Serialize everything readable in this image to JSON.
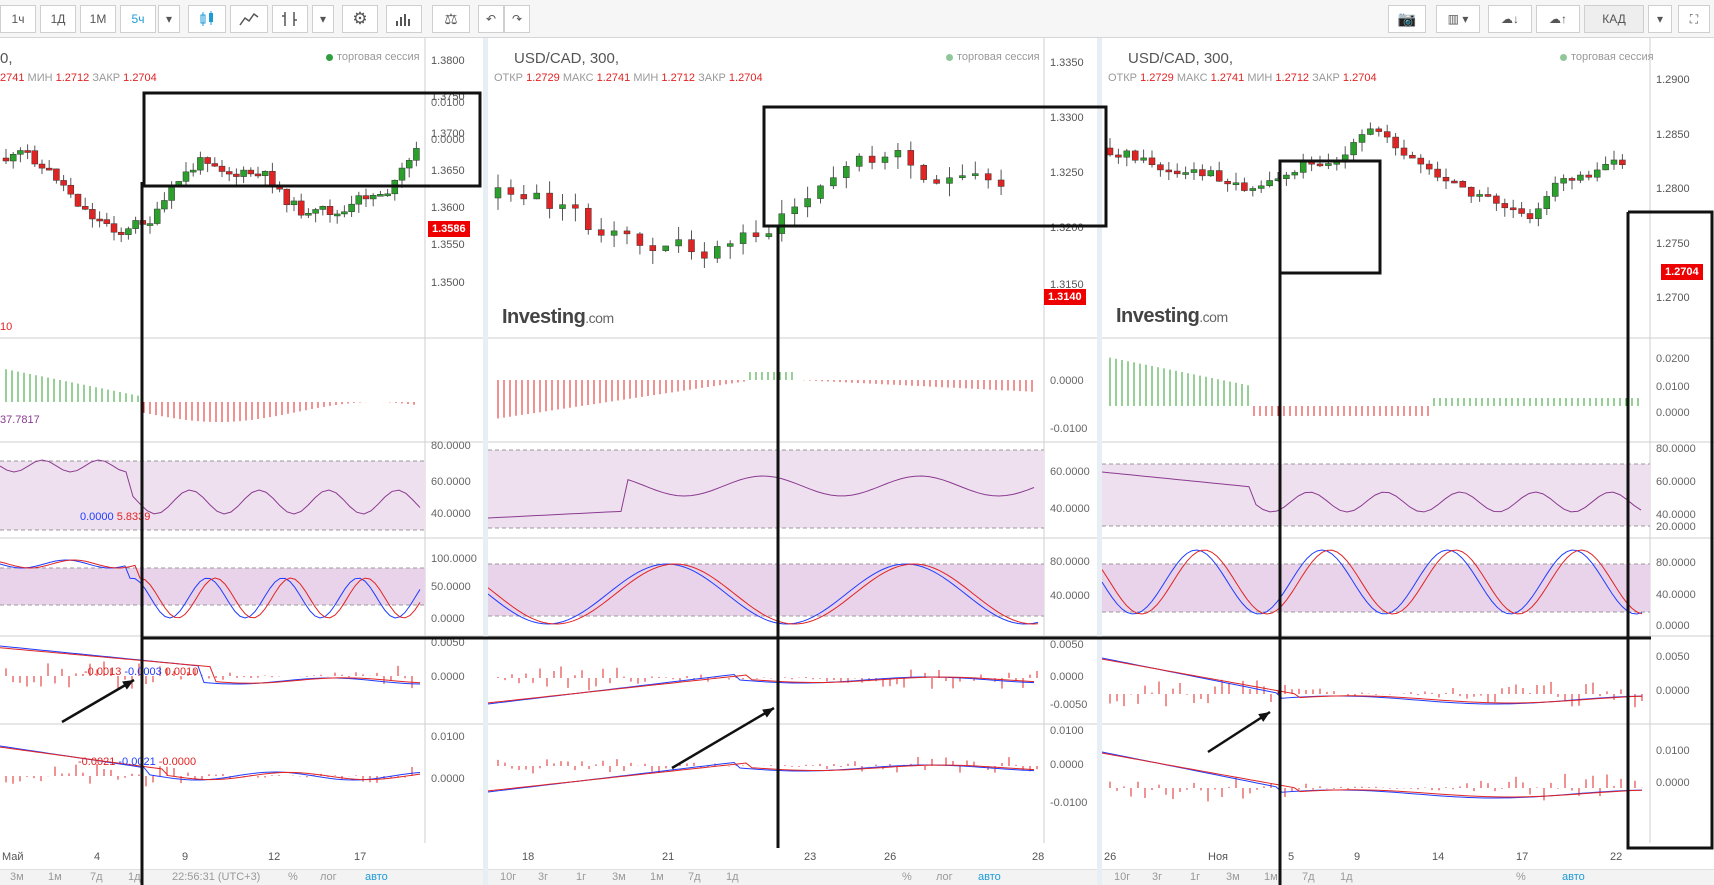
{
  "toolbar": {
    "intervals": [
      "1ч",
      "1Д",
      "1М",
      "5ч"
    ],
    "active_interval": "5ч",
    "currency_button": "КАД"
  },
  "panels": [
    {
      "title": "0,",
      "session_label": "торговая сессия",
      "ohlc_text": "2741 МИН 1.2712 ЗАКР 1.2704",
      "ohlc_labels": [
        "МИН",
        "ЗАКР"
      ],
      "ohlc_values": [
        "2741",
        "1.2712",
        "1.2704"
      ],
      "price_ticks": [
        "1.3800",
        "1.3750",
        "1.3700",
        "1.3650",
        "1.3600",
        "1.3550",
        "1.3500"
      ],
      "last_price": "1.3586",
      "osc_ticks": [
        "0.0100",
        "0.0000"
      ],
      "osc_label": "10",
      "rsi_label": "37.7817",
      "rsi_ticks": [
        "80.0000",
        "60.0000",
        "40.0000"
      ],
      "stoch_values": [
        "0.0000",
        "5.8339"
      ],
      "stoch_ticks": [
        "100.0000",
        "50.0000",
        "0.0000"
      ],
      "macd1_values": [
        "-0.0013",
        "-0.0003",
        "0.0010"
      ],
      "macd1_ticks": [
        "0.0050",
        "0.0000"
      ],
      "macd2_values": [
        "-0.0021",
        "-0.0021",
        "-0.0000"
      ],
      "macd2_ticks": [
        "0.0100",
        "0.0000"
      ],
      "x_labels": [
        "Май",
        "4",
        "9",
        "12",
        "17"
      ],
      "bottom": [
        "3м",
        "1м",
        "7д",
        "1д",
        "22:56:31 (UTC+3)",
        "%",
        "лог",
        "авто"
      ]
    },
    {
      "title": "USD/CAD, 300,",
      "session_label": "торговая сессия",
      "ohlc_labels": [
        "ОТКР",
        "МАКС",
        "МИН",
        "ЗАКР"
      ],
      "ohlc_values": [
        "1.2729",
        "1.2741",
        "1.2712",
        "1.2704"
      ],
      "price_ticks": [
        "1.3350",
        "1.3300",
        "1.3250",
        "1.3200",
        "1.3150"
      ],
      "last_price": "1.3140",
      "logo": "Investing",
      "logo_suffix": ".com",
      "osc_ticks": [
        "0.0000",
        "-0.0100"
      ],
      "rsi_ticks": [
        "60.0000",
        "40.0000"
      ],
      "stoch_ticks": [
        "80.0000",
        "40.0000"
      ],
      "macd1_ticks": [
        "0.0050",
        "0.0000",
        "-0.0050"
      ],
      "macd2_ticks": [
        "0.0100",
        "0.0000",
        "-0.0100"
      ],
      "x_labels": [
        "18",
        "21",
        "23",
        "26",
        "28"
      ],
      "bottom": [
        "10г",
        "3г",
        "1г",
        "3м",
        "1м",
        "7д",
        "1д",
        "%",
        "лог",
        "авто"
      ]
    },
    {
      "title": "USD/CAD, 300,",
      "session_label": "торговая сессия",
      "ohlc_labels": [
        "ОТКР",
        "МАКС",
        "МИН",
        "ЗАКР"
      ],
      "ohlc_values": [
        "1.2729",
        "1.2741",
        "1.2712",
        "1.2704"
      ],
      "price_ticks": [
        "1.2900",
        "1.2850",
        "1.2800",
        "1.2750",
        "1.2700"
      ],
      "last_price": "1.2704",
      "logo": "Investing",
      "logo_suffix": ".com",
      "osc_ticks": [
        "0.0200",
        "0.0100",
        "0.0000"
      ],
      "rsi_ticks": [
        "80.0000",
        "60.0000",
        "40.0000",
        "20.0000"
      ],
      "stoch_ticks": [
        "80.0000",
        "40.0000",
        "0.0000"
      ],
      "macd1_ticks": [
        "0.0050",
        "0.0000"
      ],
      "macd2_ticks": [
        "0.0100",
        "0.0000"
      ],
      "x_labels": [
        "26",
        "Ноя",
        "5",
        "9",
        "14",
        "17",
        "22"
      ],
      "bottom": [
        "10г",
        "3г",
        "1г",
        "3м",
        "1м",
        "7д",
        "1д",
        "%",
        "авто"
      ]
    }
  ],
  "colors": {
    "up": "#2ca02c",
    "down": "#e02424",
    "accent": "#1e9bd7",
    "rsi_band": "#efe0f0",
    "stoch_band": "#e9d3ea"
  }
}
